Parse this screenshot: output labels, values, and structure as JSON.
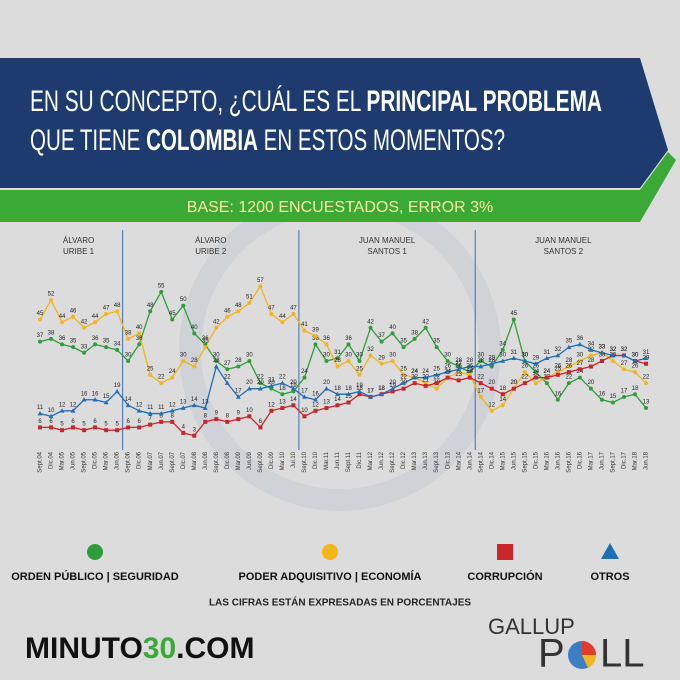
{
  "chart_data": {
    "type": "line",
    "title": [
      "EN SU CONCEPTO, ¿CUÁL ES EL ",
      "PRINCIPAL PROBLEMA",
      "QUE TIENE ",
      "COLOMBIA",
      " EN ESTOS MOMENTOS?"
    ],
    "subtitle": "BASE: 1200 ENCUESTADOS, ERROR 3%",
    "periods": [
      [
        "ÁLVARO",
        "URIBE 1"
      ],
      [
        "ÁLVARO",
        "URIBE 2"
      ],
      [
        "JUAN MANUEL",
        "SANTOS 1"
      ],
      [
        "JUAN MANUEL",
        "SANTOS 2"
      ]
    ],
    "categories": [
      "Sept.04",
      "Dic.04",
      "Mar.05",
      "Jun.05",
      "Sept.05",
      "Dic.05",
      "Mar.06",
      "Jun.06",
      "Sept.06",
      "Dic.06",
      "Mar.07",
      "Jun.07",
      "Sept.07",
      "Dic.07",
      "Mar.08",
      "Jun.08",
      "Sept.08",
      "Dic.08",
      "Mar.09",
      "Jun.09",
      "Sept.09",
      "Dic.09",
      "Mar.10",
      "Jul.10",
      "Sept.10",
      "Dic.10",
      "Mar.11",
      "Jun.11",
      "Sept.11",
      "Dic.11",
      "Mar.12",
      "Jun.12",
      "Sept.12",
      "Dic.12",
      "Mar.13",
      "Jun.13",
      "Sept.13",
      "Dic.13",
      "Mar.14",
      "Jun.14",
      "Sept.14",
      "Dic.14",
      "Mar.15",
      "Jun.15",
      "Sept.15",
      "Dic.15",
      "Mar.16",
      "Jun.16",
      "Sept.16",
      "Dic.16",
      "Mar.17",
      "Jun.17",
      "Sept.17",
      "Dic.17",
      "Mar.18",
      "Jun.18"
    ],
    "series": [
      {
        "name": "ORDEN PÚBLICO | SEGURIDAD",
        "color": "#2e9e3a",
        "marker": "circle",
        "values": [
          37,
          38,
          36,
          35,
          33,
          36,
          35,
          34,
          30,
          36,
          48,
          55,
          45,
          50,
          40,
          36,
          30,
          27,
          28,
          30,
          22,
          20,
          18,
          19,
          24,
          36,
          30,
          31,
          36,
          30,
          42,
          37,
          40,
          35,
          38,
          42,
          35,
          30,
          28,
          26,
          30,
          28,
          34,
          45,
          30,
          26,
          22,
          16,
          22,
          24,
          20,
          16,
          15,
          17,
          18,
          13
        ]
      },
      {
        "name": "PODER ADQUISITIVO | ECONOMÍA",
        "color": "#f2b51b",
        "marker": "circle",
        "values": [
          45,
          52,
          44,
          46,
          42,
          44,
          47,
          48,
          38,
          40,
          25,
          22,
          24,
          30,
          28,
          35,
          42,
          46,
          48,
          51,
          57,
          47,
          44,
          47,
          41,
          39,
          36,
          28,
          30,
          25,
          32,
          29,
          30,
          25,
          24,
          22,
          20,
          24,
          26,
          25,
          17,
          12,
          14,
          20,
          26,
          22,
          24,
          26,
          28,
          30,
          32,
          33,
          30,
          27,
          26,
          22
        ]
      },
      {
        "name": "CORRUPCIÓN",
        "color": "#c8262b",
        "marker": "square",
        "values": [
          6,
          6,
          5,
          6,
          5,
          6,
          5,
          5,
          6,
          6,
          7,
          8,
          8,
          4,
          3,
          8,
          9,
          8,
          9,
          10,
          6,
          12,
          13,
          14,
          10,
          12,
          13,
          14,
          15,
          18,
          17,
          18,
          19,
          20,
          22,
          21,
          22,
          24,
          23,
          24,
          22,
          20,
          18,
          20,
          22,
          24,
          24,
          25,
          26,
          27,
          28,
          30,
          32,
          32,
          30,
          29
        ]
      },
      {
        "name": "OTROS",
        "color": "#1f6fb5",
        "marker": "triangle",
        "values": [
          11,
          10,
          12,
          12,
          16,
          16,
          15,
          19,
          14,
          12,
          11,
          11,
          12,
          13,
          14,
          13,
          28,
          22,
          17,
          20,
          20,
          21,
          22,
          20,
          17,
          16,
          20,
          18,
          18,
          19,
          17,
          18,
          20,
          22,
          24,
          24,
          25,
          26,
          27,
          28,
          28,
          29,
          30,
          31,
          30,
          29,
          31,
          32,
          35,
          36,
          34,
          33,
          32,
          32,
          30,
          31
        ]
      }
    ],
    "ylim": [
      0,
      60
    ],
    "note": "LAS CIFRAS ESTÁN EXPRESADAS EN PORCENTAJES",
    "logo_left": [
      "MINUTO",
      "30",
      ".COM"
    ],
    "logo_right": [
      "GALLUP",
      "P",
      "LL"
    ]
  }
}
